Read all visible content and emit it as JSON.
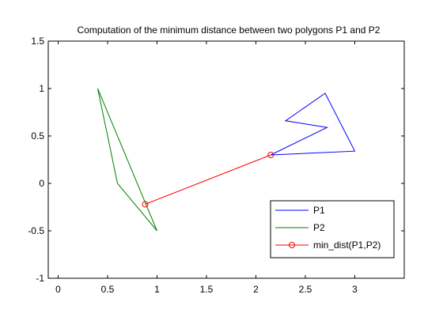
{
  "chart_data": {
    "type": "line",
    "title": "Computation of the minimum distance between two polygons P1 and P2",
    "xlabel": "",
    "ylabel": "",
    "xlim": [
      -0.1,
      3.5
    ],
    "ylim": [
      -1,
      1.5
    ],
    "xticks": [
      "0",
      "0.5",
      "1",
      "1.5",
      "2",
      "2.5",
      "3"
    ],
    "xtick_values": [
      0,
      0.5,
      1,
      1.5,
      2,
      2.5,
      3
    ],
    "yticks": [
      "-1",
      "-0.5",
      "0",
      "0.5",
      "1",
      "1.5"
    ],
    "ytick_values": [
      -1,
      -0.5,
      0,
      0.5,
      1,
      1.5
    ],
    "grid": false,
    "legend_position": "bottom-right",
    "series": [
      {
        "name": "P1",
        "color": "#0000ff",
        "marker": "none",
        "x": [
          2.15,
          2.72,
          2.3,
          2.7,
          3.0,
          2.15
        ],
        "y": [
          0.3,
          0.59,
          0.66,
          0.95,
          0.34,
          0.3
        ]
      },
      {
        "name": "P2",
        "color": "#008000",
        "marker": "none",
        "x": [
          0.4,
          0.6,
          1.0,
          0.4
        ],
        "y": [
          1.0,
          0.0,
          -0.5,
          1.0
        ]
      },
      {
        "name": "min_dist(P1,P2)",
        "color": "#ff0000",
        "marker": "circle",
        "x": [
          0.88,
          2.15
        ],
        "y": [
          -0.22,
          0.3
        ]
      }
    ]
  }
}
